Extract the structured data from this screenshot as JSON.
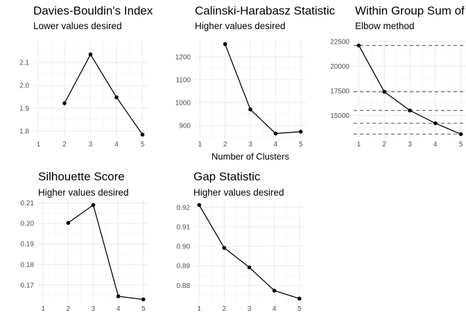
{
  "xlabel": "Number of Clusters",
  "chart_data": [
    {
      "id": "db",
      "type": "line",
      "title": "Davies-Bouldin's Index",
      "subtitle": "Lower values desired",
      "x": [
        2,
        3,
        4,
        5
      ],
      "y": [
        1.922,
        2.135,
        1.948,
        1.785
      ],
      "xlim": [
        0.8,
        5.2
      ],
      "ylim": [
        1.77,
        2.2
      ],
      "xticks": [
        1,
        2,
        3,
        4,
        5
      ],
      "yticks": [
        1.8,
        1.9,
        2.0,
        2.1
      ],
      "ytick_labels": [
        "1.8",
        "1.9",
        "2.0",
        "2.1"
      ],
      "grid": true
    },
    {
      "id": "ch",
      "type": "line",
      "title": "Calinski-Harabasz Statistic",
      "subtitle": "Higher values desired",
      "x": [
        2,
        3,
        4,
        5
      ],
      "y": [
        1255,
        970,
        865,
        873
      ],
      "xlim": [
        0.8,
        5.2
      ],
      "ylim": [
        845,
        1275
      ],
      "xticks": [
        1,
        2,
        3,
        4,
        5
      ],
      "yticks": [
        900,
        1000,
        1100,
        1200
      ],
      "ytick_labels": [
        "900",
        "1000",
        "1100",
        "1200"
      ],
      "grid": true
    },
    {
      "id": "wss",
      "type": "line",
      "title": "Within Group Sum of Squares",
      "subtitle": "Elbow method",
      "x": [
        1,
        2,
        3,
        4,
        5
      ],
      "y": [
        22100,
        17400,
        15500,
        14200,
        13100
      ],
      "xlim": [
        0.8,
        5.2
      ],
      "ylim": [
        12700,
        22700
      ],
      "xticks": [
        1,
        2,
        3,
        4,
        5
      ],
      "yticks": [
        15000,
        17500,
        20000,
        22500
      ],
      "ytick_labels": [
        "15000",
        "17500",
        "20000",
        "22500"
      ],
      "hlines": [
        22100,
        17400,
        15500,
        14200,
        13100
      ],
      "grid": true
    },
    {
      "id": "sil",
      "type": "line",
      "title": "Silhouette Score",
      "subtitle": "Higher values desired",
      "x": [
        2,
        3,
        4,
        5
      ],
      "y": [
        0.2003,
        0.209,
        0.1645,
        0.163
      ],
      "xlim": [
        0.8,
        5.2
      ],
      "ylim": [
        0.1615,
        0.2112
      ],
      "xticks": [
        1,
        2,
        3,
        4,
        5
      ],
      "yticks": [
        0.17,
        0.18,
        0.19,
        0.2,
        0.21
      ],
      "ytick_labels": [
        "0.17",
        "0.18",
        "0.19",
        "0.20",
        "0.21"
      ],
      "grid": true
    },
    {
      "id": "gap",
      "type": "line",
      "title": "Gap Statistic",
      "subtitle": "Higher values desired",
      "x": [
        1,
        2,
        3,
        4,
        5
      ],
      "y": [
        0.9212,
        0.8992,
        0.8892,
        0.8773,
        0.8732
      ],
      "xlim": [
        0.8,
        5.2
      ],
      "ylim": [
        0.8712,
        0.9235
      ],
      "xticks": [
        1,
        2,
        3,
        4,
        5
      ],
      "yticks": [
        0.88,
        0.89,
        0.9,
        0.91,
        0.92
      ],
      "ytick_labels": [
        "0.88",
        "0.89",
        "0.90",
        "0.91",
        "0.92"
      ],
      "grid": true
    }
  ]
}
